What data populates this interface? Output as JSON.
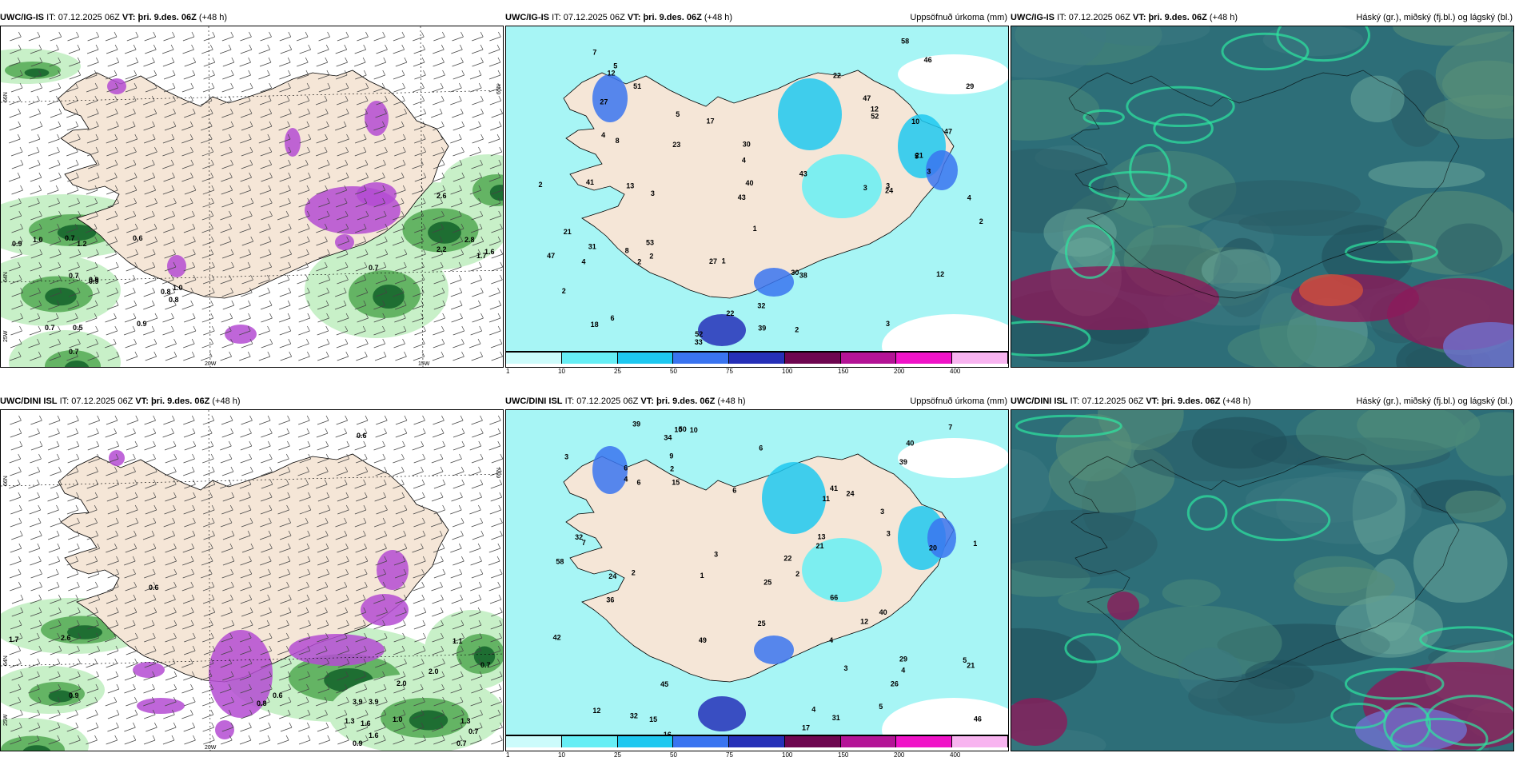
{
  "panels": [
    {
      "model": "UWC/IG-IS",
      "it_label": "IT:",
      "it_value": "07.12.2025 06Z",
      "vt_label": "VT:",
      "vt_value": "þri. 9.des. 06Z",
      "lead": "(+48 h)",
      "right_title": "",
      "type": "wind",
      "lat_labels": [
        "66N",
        "64N",
        "65N",
        "25W"
      ],
      "lon_labels": [
        "20W",
        "15W"
      ],
      "values": [
        "0.9",
        "0.7",
        "1.0",
        "1.2",
        "0.7",
        "0.6",
        "0.9",
        "0.8",
        "0.7",
        "0.5",
        "0.7",
        "0.9",
        "2.2",
        "2.8",
        "1.7",
        "1.6",
        "0.9",
        "0.7",
        "2.6",
        "0.8",
        "1.0"
      ]
    },
    {
      "model": "UWC/IG-IS",
      "it_label": "IT:",
      "it_value": "07.12.2025 06Z",
      "vt_label": "VT:",
      "vt_value": "þri. 9.des. 06Z",
      "lead": "(+48 h)",
      "right_title": "Uppsöfnuð úrkoma (mm)",
      "type": "precip",
      "values": [
        "3",
        "3",
        "3",
        "1",
        "32",
        "17",
        "43",
        "8",
        "1",
        "4",
        "2",
        "51",
        "52",
        "47",
        "18",
        "29",
        "38",
        "30",
        "41",
        "43",
        "30",
        "27",
        "53",
        "24",
        "27",
        "12",
        "22",
        "8",
        "46",
        "10",
        "21",
        "39",
        "33",
        "47",
        "31",
        "23",
        "12",
        "21",
        "47",
        "40",
        "22",
        "5",
        "2",
        "3",
        "4",
        "2",
        "5",
        "7",
        "2",
        "12",
        "2",
        "6",
        "5",
        "58",
        "3",
        "13",
        "4",
        "4",
        "52",
        "2"
      ],
      "legend_labels": [
        "1",
        "10",
        "25",
        "50",
        "75",
        "100",
        "150",
        "200",
        "400"
      ]
    },
    {
      "model": "UWC/IG-IS",
      "it_label": "IT:",
      "it_value": "07.12.2025 06Z",
      "vt_label": "VT:",
      "vt_value": "þri. 9.des. 06Z",
      "lead": "(+48 h)",
      "right_title": "Háský (gr.), miðský (fj.bl.) og lágský (bl.)",
      "type": "cloud"
    },
    {
      "model": "UWC/DINI ISL",
      "it_label": "IT:",
      "it_value": "07.12.2025 06Z",
      "vt_label": "VT:",
      "vt_value": "þri. 9.des. 06Z",
      "lead": "(+48 h)",
      "right_title": "",
      "type": "wind",
      "lat_labels": [
        "66N",
        "64N",
        "65N",
        "25W"
      ],
      "lon_labels": [
        "20W"
      ],
      "values": [
        "0.6",
        "0.6",
        "1.7",
        "2.6",
        "0.9",
        "1.1",
        "0.7",
        "3.9",
        "3.9",
        "1.3",
        "2.0",
        "1.6",
        "0.9",
        "0.7",
        "0.7",
        "1.3",
        "1.6",
        "0.8",
        "0.6",
        "1.0",
        "2.0"
      ]
    },
    {
      "model": "UWC/DINI ISL",
      "it_label": "IT:",
      "it_value": "07.12.2025 06Z",
      "vt_label": "VT:",
      "vt_value": "þri. 9.des. 06Z",
      "lead": "(+48 h)",
      "right_title": "Uppsöfnuð úrkoma (mm)",
      "type": "precip",
      "values": [
        "6",
        "5",
        "3",
        "3",
        "4",
        "4",
        "4",
        "16",
        "13",
        "36",
        "49",
        "42",
        "58",
        "40",
        "39",
        "29",
        "40",
        "25",
        "26",
        "20",
        "32",
        "50",
        "15",
        "24",
        "12",
        "34",
        "45",
        "10",
        "10",
        "9",
        "25",
        "41",
        "32",
        "22",
        "31",
        "46",
        "39",
        "66",
        "15",
        "4",
        "1",
        "3",
        "2",
        "5",
        "17",
        "6",
        "7",
        "6",
        "11",
        "2",
        "21",
        "21",
        "24",
        "12",
        "6",
        "7",
        "3",
        "2",
        "1",
        "3"
      ],
      "legend_labels": [
        "1",
        "10",
        "25",
        "50",
        "75",
        "100",
        "150",
        "200",
        "400"
      ]
    },
    {
      "model": "UWC/DINI ISL",
      "it_label": "IT:",
      "it_value": "07.12.2025 06Z",
      "vt_label": "VT:",
      "vt_value": "þri. 9.des. 06Z",
      "lead": "(+48 h)",
      "right_title": "Háský (gr.), miðský (fj.bl.) og lágský (bl.)",
      "type": "cloud"
    }
  ],
  "precip_colors": [
    "#ccfbfb",
    "#66eef5",
    "#1ec8f0",
    "#3a74f0",
    "#2630b8",
    "#6e0650",
    "#b41496",
    "#f014c8",
    "#f8b4f0"
  ],
  "colors": {
    "land": "#f5e6d7",
    "sea_precip": "#a7f5f5",
    "wind_green_light": "#c8f0c8",
    "wind_green_dark": "#1e6e32",
    "purple": "#b44bd2",
    "cloud_base": "#2d6e78"
  }
}
